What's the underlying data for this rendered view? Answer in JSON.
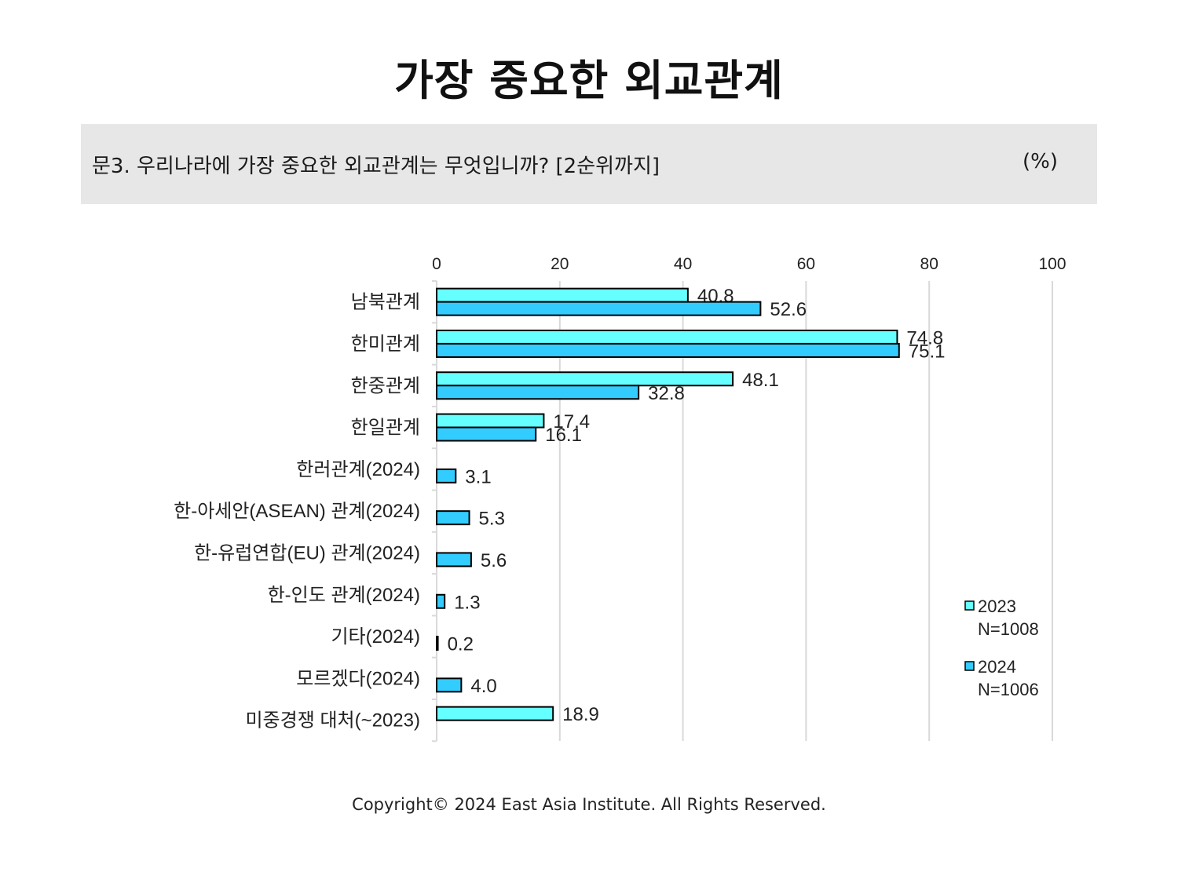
{
  "title": "가장 중요한 외교관계",
  "question": "문3. 우리나라에 가장 중요한 외교관계는 무엇입니까? [2순위까지]",
  "unit": "(%)",
  "footer": "Copyright© 2024 East Asia Institute. All Rights Reserved.",
  "colors": {
    "series_2023": "#66ffff",
    "series_2024": "#33ccff",
    "bar_border": "#000000",
    "grid": "#d9d9d9",
    "band": "#e8e7e7"
  },
  "chart_data": {
    "type": "bar",
    "orientation": "horizontal",
    "xlim": [
      0,
      100
    ],
    "xticks": [
      "0",
      "20",
      "40",
      "60",
      "80",
      "100"
    ],
    "grid": true,
    "legend_position": "right",
    "categories": [
      "남북관계",
      "한미관계",
      "한중관계",
      "한일관계",
      "한러관계(2024)",
      "한-아세안(ASEAN) 관계(2024)",
      "한-유럽연합(EU) 관계(2024)",
      "한-인도 관계(2024)",
      "기타(2024)",
      "모르겠다(2024)",
      "미중경쟁 대처(~2023)"
    ],
    "series": [
      {
        "name": "2023",
        "legend_label": "2023",
        "legend_sub": "N=1008",
        "values": [
          40.8,
          74.8,
          48.1,
          17.4,
          null,
          null,
          null,
          null,
          null,
          null,
          18.9
        ],
        "labels": [
          "40.8",
          "74.8",
          "48.1",
          "17.4",
          null,
          null,
          null,
          null,
          null,
          null,
          "18.9"
        ]
      },
      {
        "name": "2024",
        "legend_label": "2024",
        "legend_sub": "N=1006",
        "values": [
          52.6,
          75.1,
          32.8,
          16.1,
          3.1,
          5.3,
          5.6,
          1.3,
          0.2,
          4.0,
          null
        ],
        "labels": [
          "52.6",
          "75.1",
          "32.8",
          "16.1",
          "3.1",
          "5.3",
          "5.6",
          "1.3",
          "0.2",
          "4.0",
          null
        ]
      }
    ]
  }
}
